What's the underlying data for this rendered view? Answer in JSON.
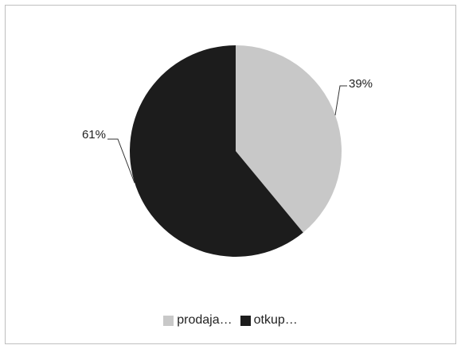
{
  "chart_data": {
    "type": "pie",
    "title": "",
    "slices": [
      {
        "label": "prodaja…",
        "value": 39,
        "display": "39%",
        "color": "#c8c8c8"
      },
      {
        "label": "otkup…",
        "value": 61,
        "display": "61%",
        "color": "#1c1c1c"
      }
    ],
    "legend_position": "bottom",
    "start_angle_deg": 0,
    "direction": "clockwise"
  }
}
